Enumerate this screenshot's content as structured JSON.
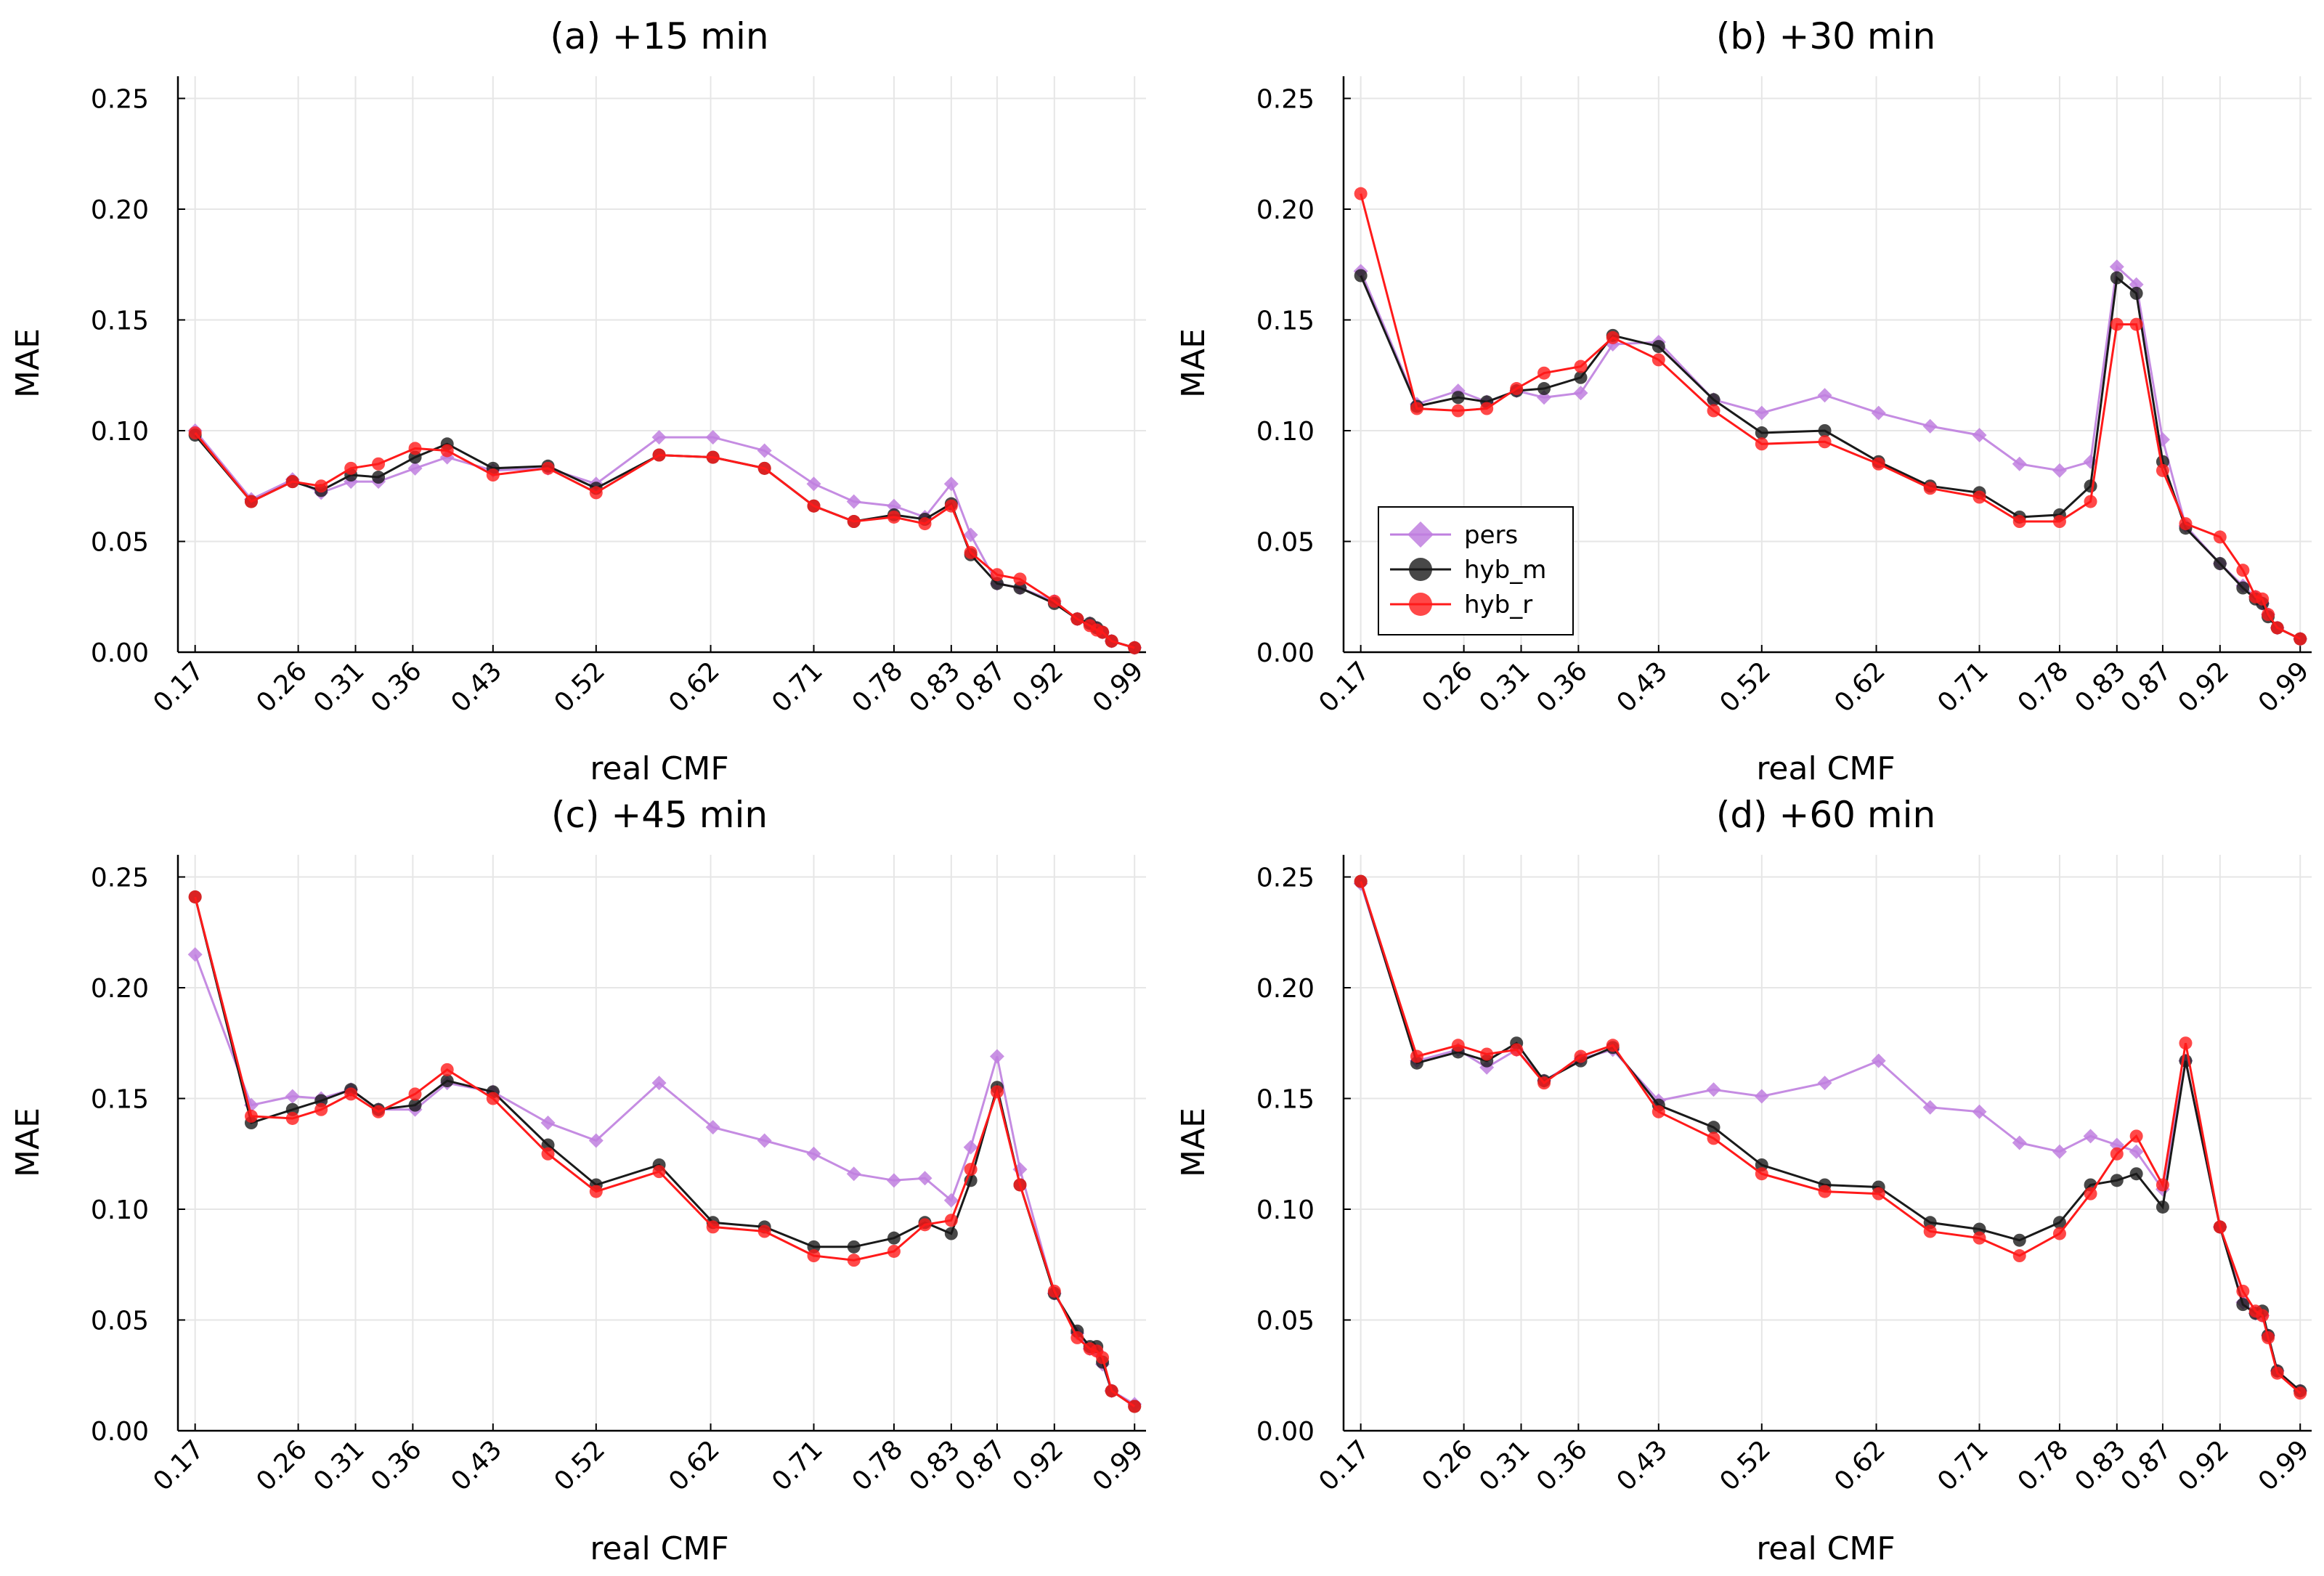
{
  "chart_data": [
    {
      "type": "line",
      "title": "(a) +15 min",
      "xlabel": "real CMF",
      "ylabel": "MAE",
      "ylim": [
        0,
        0.26
      ],
      "y_ticks": [
        "0.00",
        "0.05",
        "0.10",
        "0.15",
        "0.20",
        "0.25"
      ],
      "x_ticks": [
        "0.17",
        "0.26",
        "0.31",
        "0.36",
        "0.43",
        "0.52",
        "0.62",
        "0.71",
        "0.78",
        "0.83",
        "0.87",
        "0.92",
        "0.99"
      ],
      "x_tick_values": [
        0.17,
        0.26,
        0.31,
        0.36,
        0.43,
        0.52,
        0.62,
        0.71,
        0.78,
        0.83,
        0.87,
        0.92,
        0.99
      ],
      "grid": true,
      "legend": null,
      "series": [
        {
          "name": "pers",
          "color": "#bf7fdf",
          "marker": "diamond",
          "x": [
            0.17,
            0.219,
            0.255,
            0.28,
            0.306,
            0.33,
            0.362,
            0.39,
            0.43,
            0.478,
            0.52,
            0.575,
            0.622,
            0.667,
            0.71,
            0.745,
            0.78,
            0.807,
            0.83,
            0.847,
            0.87,
            0.89,
            0.92,
            0.94,
            0.951,
            0.957,
            0.962,
            0.97,
            0.99
          ],
          "y": [
            0.1,
            0.069,
            0.078,
            0.072,
            0.077,
            0.077,
            0.083,
            0.088,
            0.082,
            0.083,
            0.076,
            0.097,
            0.097,
            0.091,
            0.076,
            0.068,
            0.066,
            0.061,
            0.076,
            0.053,
            0.031,
            0.029,
            0.023,
            0.015,
            0.013,
            0.011,
            0.009,
            0.005,
            0.002
          ]
        },
        {
          "name": "hyb_m",
          "color": "#1a1a1a",
          "marker": "circle",
          "x": [
            0.17,
            0.219,
            0.255,
            0.28,
            0.306,
            0.33,
            0.362,
            0.39,
            0.43,
            0.478,
            0.52,
            0.575,
            0.622,
            0.667,
            0.71,
            0.745,
            0.78,
            0.807,
            0.83,
            0.847,
            0.87,
            0.89,
            0.92,
            0.94,
            0.951,
            0.957,
            0.962,
            0.97,
            0.99
          ],
          "y": [
            0.098,
            0.068,
            0.077,
            0.073,
            0.08,
            0.079,
            0.088,
            0.094,
            0.083,
            0.084,
            0.074,
            0.089,
            0.088,
            0.083,
            0.066,
            0.059,
            0.062,
            0.06,
            0.067,
            0.044,
            0.031,
            0.029,
            0.022,
            0.015,
            0.013,
            0.011,
            0.009,
            0.005,
            0.002
          ]
        },
        {
          "name": "hyb_r",
          "color": "#ff1a1a",
          "marker": "circle",
          "x": [
            0.17,
            0.219,
            0.255,
            0.28,
            0.306,
            0.33,
            0.362,
            0.39,
            0.43,
            0.478,
            0.52,
            0.575,
            0.622,
            0.667,
            0.71,
            0.745,
            0.78,
            0.807,
            0.83,
            0.847,
            0.87,
            0.89,
            0.92,
            0.94,
            0.951,
            0.957,
            0.962,
            0.97,
            0.99
          ],
          "y": [
            0.099,
            0.068,
            0.077,
            0.075,
            0.083,
            0.085,
            0.092,
            0.091,
            0.08,
            0.083,
            0.072,
            0.089,
            0.088,
            0.083,
            0.066,
            0.059,
            0.061,
            0.058,
            0.066,
            0.045,
            0.035,
            0.033,
            0.023,
            0.015,
            0.012,
            0.01,
            0.009,
            0.005,
            0.002
          ]
        }
      ]
    },
    {
      "type": "line",
      "title": "(b) +30 min",
      "xlabel": "real CMF",
      "ylabel": "MAE",
      "ylim": [
        0,
        0.26
      ],
      "y_ticks": [
        "0.00",
        "0.05",
        "0.10",
        "0.15",
        "0.20",
        "0.25"
      ],
      "x_ticks": [
        "0.17",
        "0.26",
        "0.31",
        "0.36",
        "0.43",
        "0.52",
        "0.62",
        "0.71",
        "0.78",
        "0.83",
        "0.87",
        "0.92",
        "0.99"
      ],
      "x_tick_values": [
        0.17,
        0.26,
        0.31,
        0.36,
        0.43,
        0.52,
        0.62,
        0.71,
        0.78,
        0.83,
        0.87,
        0.92,
        0.99
      ],
      "grid": true,
      "legend": "bottom-left",
      "series": [
        {
          "name": "pers",
          "color": "#bf7fdf",
          "marker": "diamond",
          "x": [
            0.17,
            0.219,
            0.255,
            0.28,
            0.306,
            0.33,
            0.362,
            0.39,
            0.43,
            0.478,
            0.52,
            0.575,
            0.622,
            0.667,
            0.71,
            0.745,
            0.78,
            0.807,
            0.83,
            0.847,
            0.87,
            0.89,
            0.92,
            0.94,
            0.951,
            0.957,
            0.962,
            0.97,
            0.99
          ],
          "y": [
            0.172,
            0.112,
            0.118,
            0.113,
            0.118,
            0.115,
            0.117,
            0.139,
            0.14,
            0.114,
            0.108,
            0.116,
            0.108,
            0.102,
            0.098,
            0.085,
            0.082,
            0.086,
            0.174,
            0.166,
            0.096,
            0.057,
            0.04,
            0.03,
            0.025,
            0.022,
            0.017,
            0.011,
            0.006
          ]
        },
        {
          "name": "hyb_m",
          "color": "#1a1a1a",
          "marker": "circle",
          "x": [
            0.17,
            0.219,
            0.255,
            0.28,
            0.306,
            0.33,
            0.362,
            0.39,
            0.43,
            0.478,
            0.52,
            0.575,
            0.622,
            0.667,
            0.71,
            0.745,
            0.78,
            0.807,
            0.83,
            0.847,
            0.87,
            0.89,
            0.92,
            0.94,
            0.951,
            0.957,
            0.962,
            0.97,
            0.99
          ],
          "y": [
            0.17,
            0.111,
            0.115,
            0.113,
            0.118,
            0.119,
            0.124,
            0.143,
            0.138,
            0.114,
            0.099,
            0.1,
            0.086,
            0.075,
            0.072,
            0.061,
            0.062,
            0.075,
            0.169,
            0.162,
            0.086,
            0.056,
            0.04,
            0.029,
            0.024,
            0.022,
            0.016,
            0.011,
            0.006
          ]
        },
        {
          "name": "hyb_r",
          "color": "#ff1a1a",
          "marker": "circle",
          "x": [
            0.17,
            0.219,
            0.255,
            0.28,
            0.306,
            0.33,
            0.362,
            0.39,
            0.43,
            0.478,
            0.52,
            0.575,
            0.622,
            0.667,
            0.71,
            0.745,
            0.78,
            0.807,
            0.83,
            0.847,
            0.87,
            0.89,
            0.92,
            0.94,
            0.951,
            0.957,
            0.962,
            0.97,
            0.99
          ],
          "y": [
            0.207,
            0.11,
            0.109,
            0.11,
            0.119,
            0.126,
            0.129,
            0.142,
            0.132,
            0.109,
            0.094,
            0.095,
            0.085,
            0.074,
            0.07,
            0.059,
            0.059,
            0.068,
            0.148,
            0.148,
            0.082,
            0.058,
            0.052,
            0.037,
            0.025,
            0.024,
            0.017,
            0.011,
            0.006
          ]
        }
      ],
      "legend_entries": [
        "pers",
        "hyb_m",
        "hyb_r"
      ]
    },
    {
      "type": "line",
      "title": "(c) +45 min",
      "xlabel": "real CMF",
      "ylabel": "MAE",
      "ylim": [
        0,
        0.26
      ],
      "y_ticks": [
        "0.00",
        "0.05",
        "0.10",
        "0.15",
        "0.20",
        "0.25"
      ],
      "x_ticks": [
        "0.17",
        "0.26",
        "0.31",
        "0.36",
        "0.43",
        "0.52",
        "0.62",
        "0.71",
        "0.78",
        "0.83",
        "0.87",
        "0.92",
        "0.99"
      ],
      "x_tick_values": [
        0.17,
        0.26,
        0.31,
        0.36,
        0.43,
        0.52,
        0.62,
        0.71,
        0.78,
        0.83,
        0.87,
        0.92,
        0.99
      ],
      "grid": true,
      "legend": null,
      "series": [
        {
          "name": "pers",
          "color": "#bf7fdf",
          "marker": "diamond",
          "x": [
            0.17,
            0.219,
            0.255,
            0.28,
            0.306,
            0.33,
            0.362,
            0.39,
            0.43,
            0.478,
            0.52,
            0.575,
            0.622,
            0.667,
            0.71,
            0.745,
            0.78,
            0.807,
            0.83,
            0.847,
            0.87,
            0.89,
            0.92,
            0.94,
            0.951,
            0.957,
            0.962,
            0.97,
            0.99
          ],
          "y": [
            0.215,
            0.147,
            0.151,
            0.15,
            0.154,
            0.145,
            0.145,
            0.157,
            0.153,
            0.139,
            0.131,
            0.157,
            0.137,
            0.131,
            0.125,
            0.116,
            0.113,
            0.114,
            0.104,
            0.128,
            0.169,
            0.118,
            0.062,
            0.044,
            0.037,
            0.036,
            0.03,
            0.018,
            0.012
          ]
        },
        {
          "name": "hyb_m",
          "color": "#1a1a1a",
          "marker": "circle",
          "x": [
            0.17,
            0.219,
            0.255,
            0.28,
            0.306,
            0.33,
            0.362,
            0.39,
            0.43,
            0.478,
            0.52,
            0.575,
            0.622,
            0.667,
            0.71,
            0.745,
            0.78,
            0.807,
            0.83,
            0.847,
            0.87,
            0.89,
            0.92,
            0.94,
            0.951,
            0.957,
            0.962,
            0.97,
            0.99
          ],
          "y": [
            0.241,
            0.139,
            0.145,
            0.149,
            0.154,
            0.145,
            0.147,
            0.158,
            0.153,
            0.129,
            0.111,
            0.12,
            0.094,
            0.092,
            0.083,
            0.083,
            0.087,
            0.094,
            0.089,
            0.113,
            0.155,
            0.111,
            0.062,
            0.045,
            0.038,
            0.038,
            0.031,
            0.018,
            0.011
          ]
        },
        {
          "name": "hyb_r",
          "color": "#ff1a1a",
          "marker": "circle",
          "x": [
            0.17,
            0.219,
            0.255,
            0.28,
            0.306,
            0.33,
            0.362,
            0.39,
            0.43,
            0.478,
            0.52,
            0.575,
            0.622,
            0.667,
            0.71,
            0.745,
            0.78,
            0.807,
            0.83,
            0.847,
            0.87,
            0.89,
            0.92,
            0.94,
            0.951,
            0.957,
            0.962,
            0.97,
            0.99
          ],
          "y": [
            0.241,
            0.142,
            0.141,
            0.145,
            0.152,
            0.144,
            0.152,
            0.163,
            0.15,
            0.125,
            0.108,
            0.117,
            0.092,
            0.09,
            0.079,
            0.077,
            0.081,
            0.093,
            0.095,
            0.118,
            0.153,
            0.111,
            0.063,
            0.042,
            0.037,
            0.036,
            0.033,
            0.018,
            0.011
          ]
        }
      ]
    },
    {
      "type": "line",
      "title": "(d) +60 min",
      "xlabel": "real CMF",
      "ylabel": "MAE",
      "ylim": [
        0,
        0.26
      ],
      "y_ticks": [
        "0.00",
        "0.05",
        "0.10",
        "0.15",
        "0.20",
        "0.25"
      ],
      "x_ticks": [
        "0.17",
        "0.26",
        "0.31",
        "0.36",
        "0.43",
        "0.52",
        "0.62",
        "0.71",
        "0.78",
        "0.83",
        "0.87",
        "0.92",
        "0.99"
      ],
      "x_tick_values": [
        0.17,
        0.26,
        0.31,
        0.36,
        0.43,
        0.52,
        0.62,
        0.71,
        0.78,
        0.83,
        0.87,
        0.92,
        0.99
      ],
      "grid": true,
      "legend": null,
      "series": [
        {
          "name": "pers",
          "color": "#bf7fdf",
          "marker": "diamond",
          "x": [
            0.17,
            0.219,
            0.255,
            0.28,
            0.306,
            0.33,
            0.362,
            0.39,
            0.43,
            0.478,
            0.52,
            0.575,
            0.622,
            0.667,
            0.71,
            0.745,
            0.78,
            0.807,
            0.83,
            0.847,
            0.87,
            0.89,
            0.92,
            0.94,
            0.951,
            0.957,
            0.962,
            0.97,
            0.99
          ],
          "y": [
            0.247,
            0.167,
            0.172,
            0.164,
            0.172,
            0.158,
            0.168,
            0.172,
            0.149,
            0.154,
            0.151,
            0.157,
            0.167,
            0.146,
            0.144,
            0.13,
            0.126,
            0.133,
            0.129,
            0.126,
            0.109,
            0.167,
            0.092,
            0.058,
            0.053,
            0.052,
            0.043,
            0.027,
            0.018
          ]
        },
        {
          "name": "hyb_m",
          "color": "#1a1a1a",
          "marker": "circle",
          "x": [
            0.17,
            0.219,
            0.255,
            0.28,
            0.306,
            0.33,
            0.362,
            0.39,
            0.43,
            0.478,
            0.52,
            0.575,
            0.622,
            0.667,
            0.71,
            0.745,
            0.78,
            0.807,
            0.83,
            0.847,
            0.87,
            0.89,
            0.92,
            0.94,
            0.951,
            0.957,
            0.962,
            0.97,
            0.99
          ],
          "y": [
            0.248,
            0.166,
            0.171,
            0.167,
            0.175,
            0.158,
            0.167,
            0.173,
            0.147,
            0.137,
            0.12,
            0.111,
            0.11,
            0.094,
            0.091,
            0.086,
            0.094,
            0.111,
            0.113,
            0.116,
            0.101,
            0.167,
            0.092,
            0.057,
            0.053,
            0.054,
            0.043,
            0.027,
            0.018
          ]
        },
        {
          "name": "hyb_r",
          "color": "#ff1a1a",
          "marker": "circle",
          "x": [
            0.17,
            0.219,
            0.255,
            0.28,
            0.306,
            0.33,
            0.362,
            0.39,
            0.43,
            0.478,
            0.52,
            0.575,
            0.622,
            0.667,
            0.71,
            0.745,
            0.78,
            0.807,
            0.83,
            0.847,
            0.87,
            0.89,
            0.92,
            0.94,
            0.951,
            0.957,
            0.962,
            0.97,
            0.99
          ],
          "y": [
            0.248,
            0.169,
            0.174,
            0.17,
            0.172,
            0.157,
            0.169,
            0.174,
            0.144,
            0.132,
            0.116,
            0.108,
            0.107,
            0.09,
            0.087,
            0.079,
            0.089,
            0.107,
            0.125,
            0.133,
            0.111,
            0.175,
            0.092,
            0.063,
            0.054,
            0.052,
            0.042,
            0.026,
            0.017
          ]
        }
      ]
    }
  ]
}
